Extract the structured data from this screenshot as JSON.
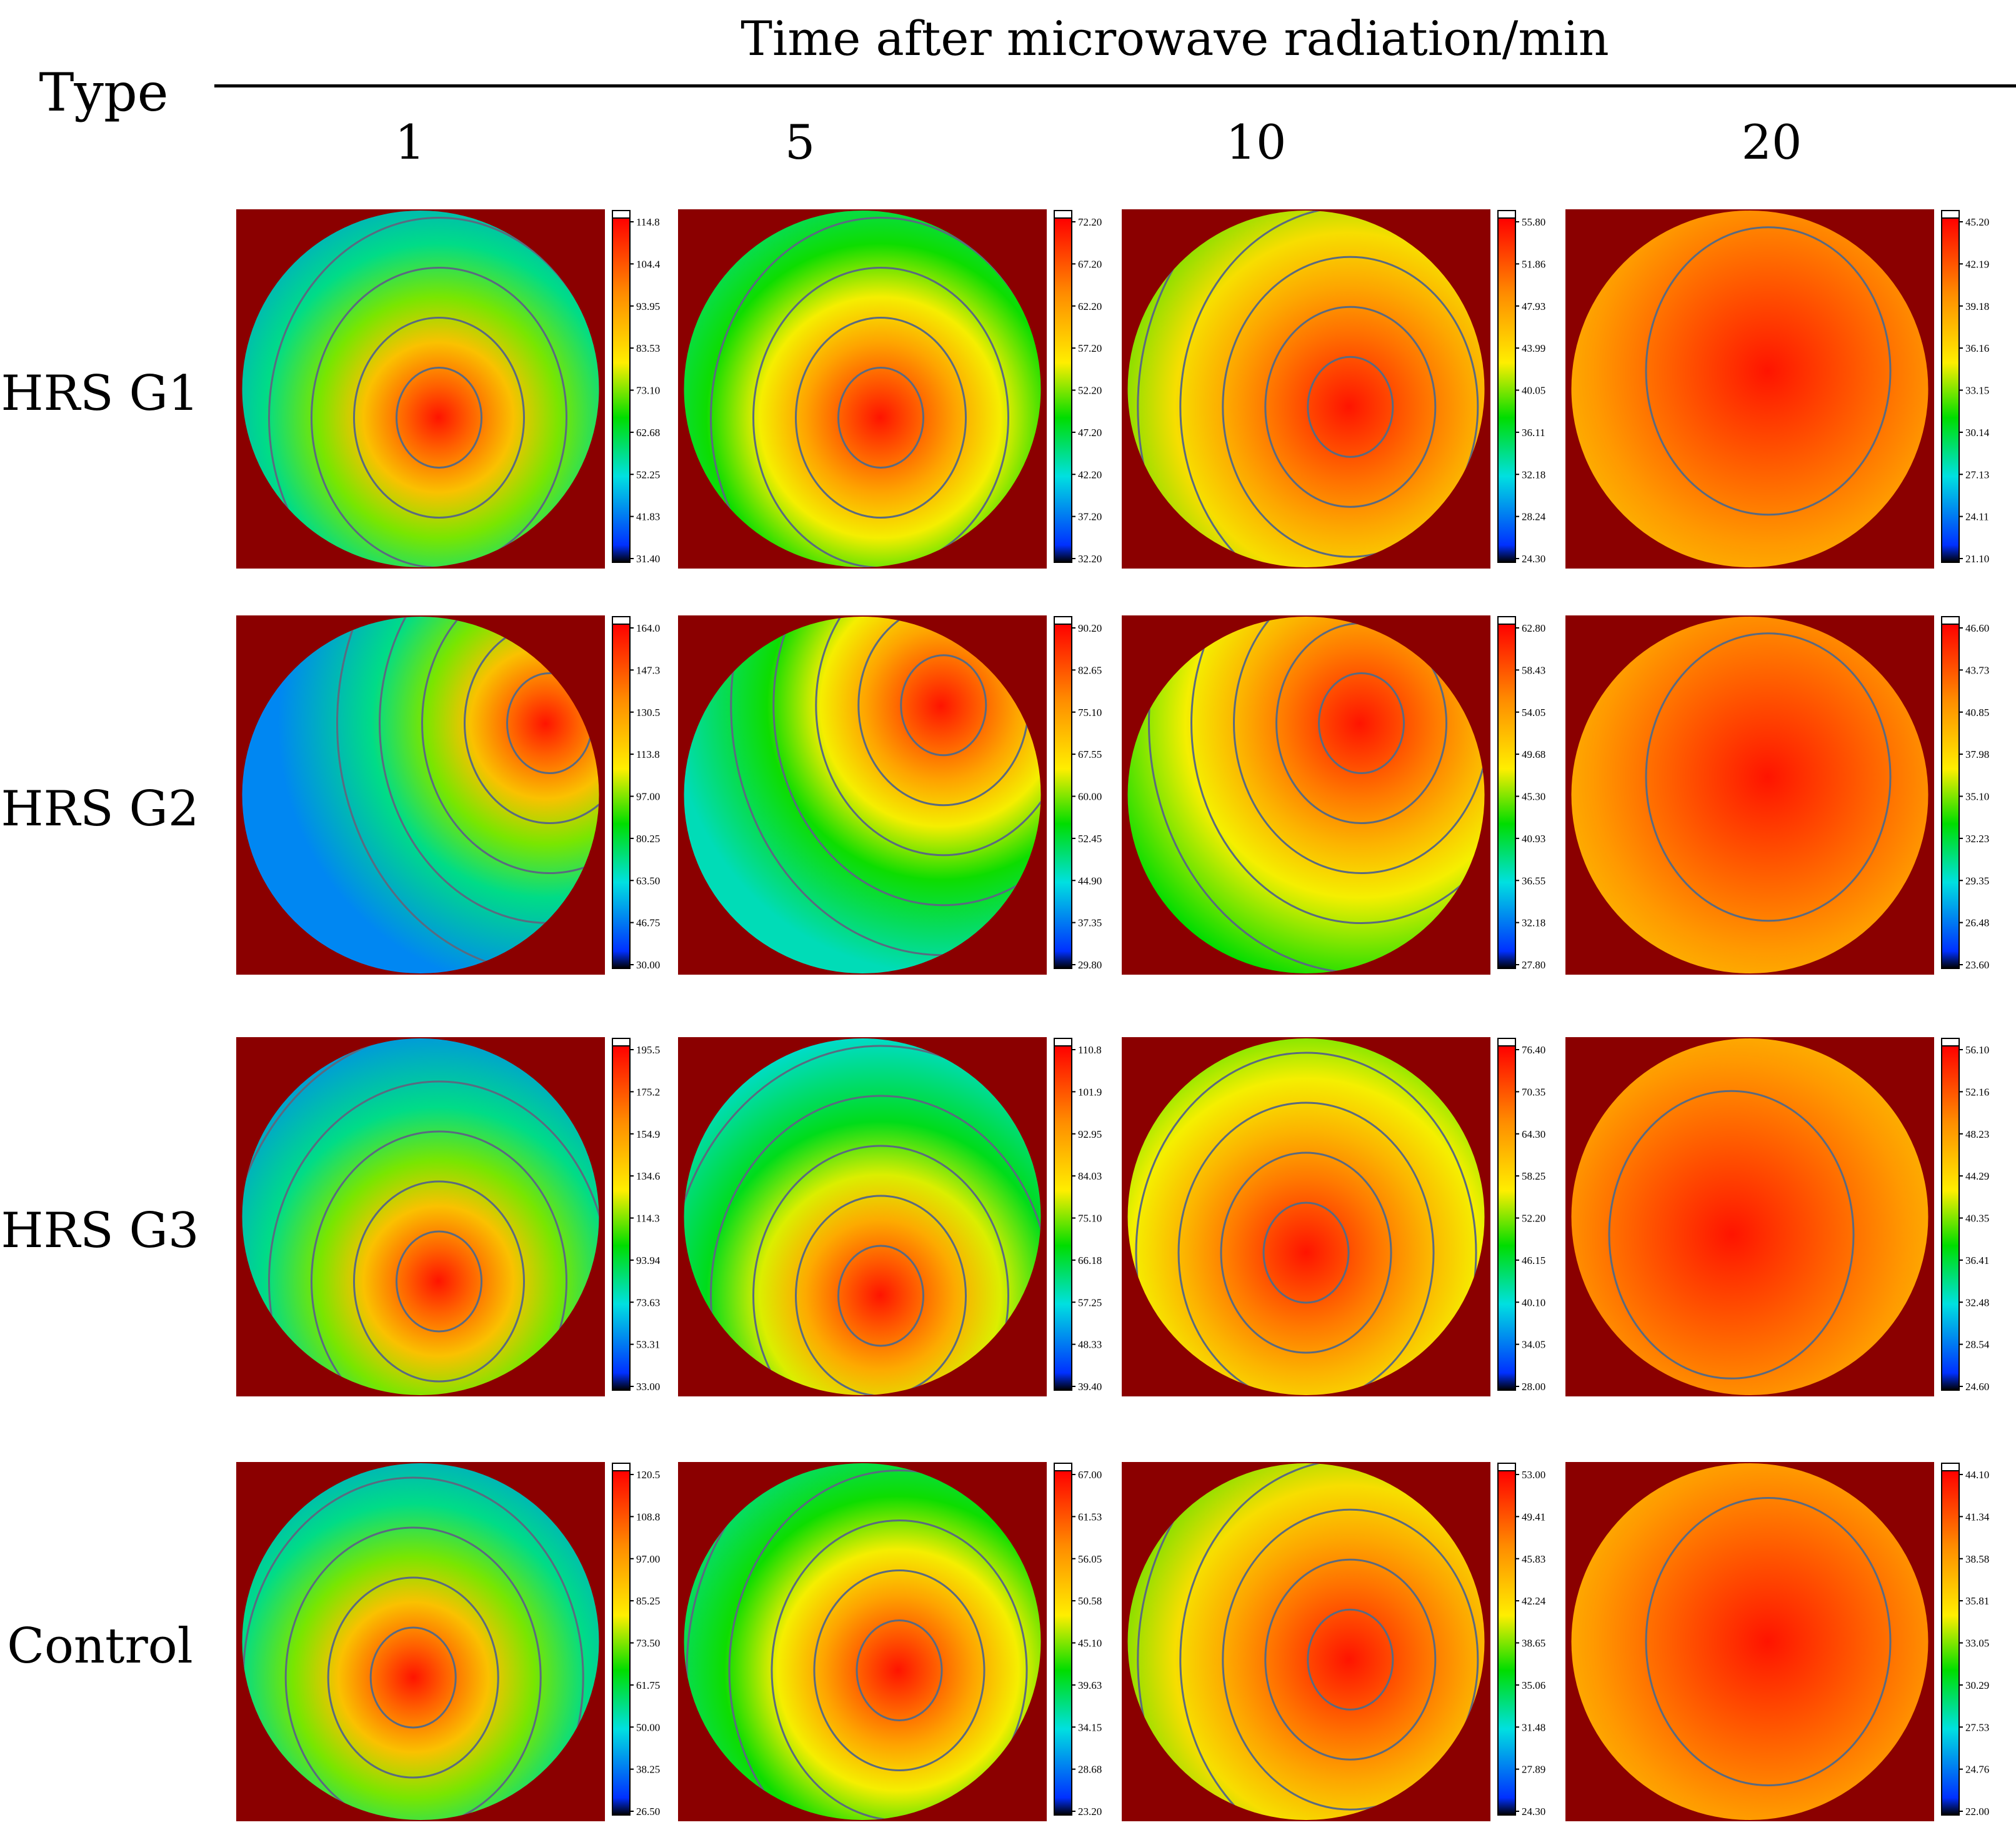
{
  "header": {
    "title": "Time after microwave radiation/min",
    "type_label": "Type",
    "columns": [
      "1",
      "5",
      "10",
      "20"
    ]
  },
  "rows": [
    {
      "label": "HRS G1",
      "panels": [
        {
          "scale": [
            "114.8",
            "104.4",
            "93.95",
            "83.53",
            "73.10",
            "62.68",
            "52.25",
            "41.83",
            "31.40"
          ],
          "hotspot": [
            0.55,
            0.58
          ],
          "warmth": 0.15
        },
        {
          "scale": [
            "72.20",
            "67.20",
            "62.20",
            "57.20",
            "52.20",
            "47.20",
            "42.20",
            "37.20",
            "32.20"
          ],
          "hotspot": [
            0.55,
            0.58
          ],
          "warmth": 0.35
        },
        {
          "scale": [
            "55.80",
            "51.86",
            "47.93",
            "43.99",
            "40.05",
            "36.11",
            "32.18",
            "28.24",
            "24.30"
          ],
          "hotspot": [
            0.62,
            0.55
          ],
          "warmth": 0.65
        },
        {
          "scale": [
            "45.20",
            "42.19",
            "39.18",
            "36.16",
            "33.15",
            "30.14",
            "27.13",
            "24.11",
            "21.10"
          ],
          "hotspot": [
            0.55,
            0.45
          ],
          "warmth": 0.85
        }
      ]
    },
    {
      "label": "HRS G2",
      "panels": [
        {
          "scale": [
            "164.0",
            "147.3",
            "130.5",
            "113.8",
            "97.00",
            "80.25",
            "63.50",
            "46.75",
            "30.00"
          ],
          "hotspot": [
            0.85,
            0.3
          ],
          "warmth": 0.15
        },
        {
          "scale": [
            "90.20",
            "82.65",
            "75.10",
            "67.55",
            "60.00",
            "52.45",
            "44.90",
            "37.35",
            "29.80"
          ],
          "hotspot": [
            0.72,
            0.25
          ],
          "warmth": 0.35
        },
        {
          "scale": [
            "62.80",
            "58.43",
            "54.05",
            "49.68",
            "45.30",
            "40.93",
            "36.55",
            "32.18",
            "27.80"
          ],
          "hotspot": [
            0.65,
            0.3
          ],
          "warmth": 0.6
        },
        {
          "scale": [
            "46.60",
            "43.73",
            "40.85",
            "37.98",
            "35.10",
            "32.23",
            "29.35",
            "26.48",
            "23.60"
          ],
          "hotspot": [
            0.55,
            0.45
          ],
          "warmth": 0.85
        }
      ]
    },
    {
      "label": "HRS G3",
      "panels": [
        {
          "scale": [
            "195.5",
            "175.2",
            "154.9",
            "134.6",
            "114.3",
            "93.94",
            "73.63",
            "53.31",
            "33.00"
          ],
          "hotspot": [
            0.55,
            0.68
          ],
          "warmth": 0.15
        },
        {
          "scale": [
            "110.8",
            "101.9",
            "92.95",
            "84.03",
            "75.10",
            "66.18",
            "57.25",
            "48.33",
            "39.40"
          ],
          "hotspot": [
            0.55,
            0.72
          ],
          "warmth": 0.3
        },
        {
          "scale": [
            "76.40",
            "70.35",
            "64.30",
            "58.25",
            "52.20",
            "46.15",
            "40.10",
            "34.05",
            "28.00"
          ],
          "hotspot": [
            0.5,
            0.6
          ],
          "warmth": 0.6
        },
        {
          "scale": [
            "56.10",
            "52.16",
            "48.23",
            "44.29",
            "40.35",
            "36.41",
            "32.48",
            "28.54",
            "24.60"
          ],
          "hotspot": [
            0.45,
            0.55
          ],
          "warmth": 0.85
        }
      ]
    },
    {
      "label": "Control",
      "panels": [
        {
          "scale": [
            "120.5",
            "108.8",
            "97.00",
            "85.25",
            "73.50",
            "61.75",
            "50.00",
            "38.25",
            "26.50"
          ],
          "hotspot": [
            0.48,
            0.6
          ],
          "warmth": 0.15
        },
        {
          "scale": [
            "67.00",
            "61.53",
            "56.05",
            "50.58",
            "45.10",
            "39.63",
            "34.15",
            "28.68",
            "23.20"
          ],
          "hotspot": [
            0.6,
            0.58
          ],
          "warmth": 0.35
        },
        {
          "scale": [
            "53.00",
            "49.41",
            "45.83",
            "42.24",
            "38.65",
            "35.06",
            "31.48",
            "27.89",
            "24.30"
          ],
          "hotspot": [
            0.62,
            0.55
          ],
          "warmth": 0.65
        },
        {
          "scale": [
            "44.10",
            "41.34",
            "38.58",
            "35.81",
            "33.05",
            "30.29",
            "27.53",
            "24.76",
            "22.00"
          ],
          "hotspot": [
            0.55,
            0.5
          ],
          "warmth": 0.85
        }
      ]
    }
  ],
  "colors": {
    "background_frame": "#8b0000",
    "contour": "#5a6a80",
    "scale_stops": [
      "#ff0000",
      "#ff8c00",
      "#ffee00",
      "#00dd00",
      "#00e0e0",
      "#0030ff",
      "#000000"
    ]
  }
}
